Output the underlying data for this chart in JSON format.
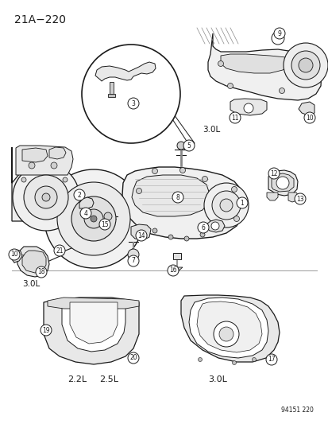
{
  "page_id": "21A-220",
  "doc_id": "94151 220",
  "background_color": "#ffffff",
  "line_color": "#1a1a1a",
  "title": "21A−220",
  "title_fontsize": 10,
  "footer": "94151 220",
  "figsize": [
    4.14,
    5.33
  ],
  "dpi": 100
}
